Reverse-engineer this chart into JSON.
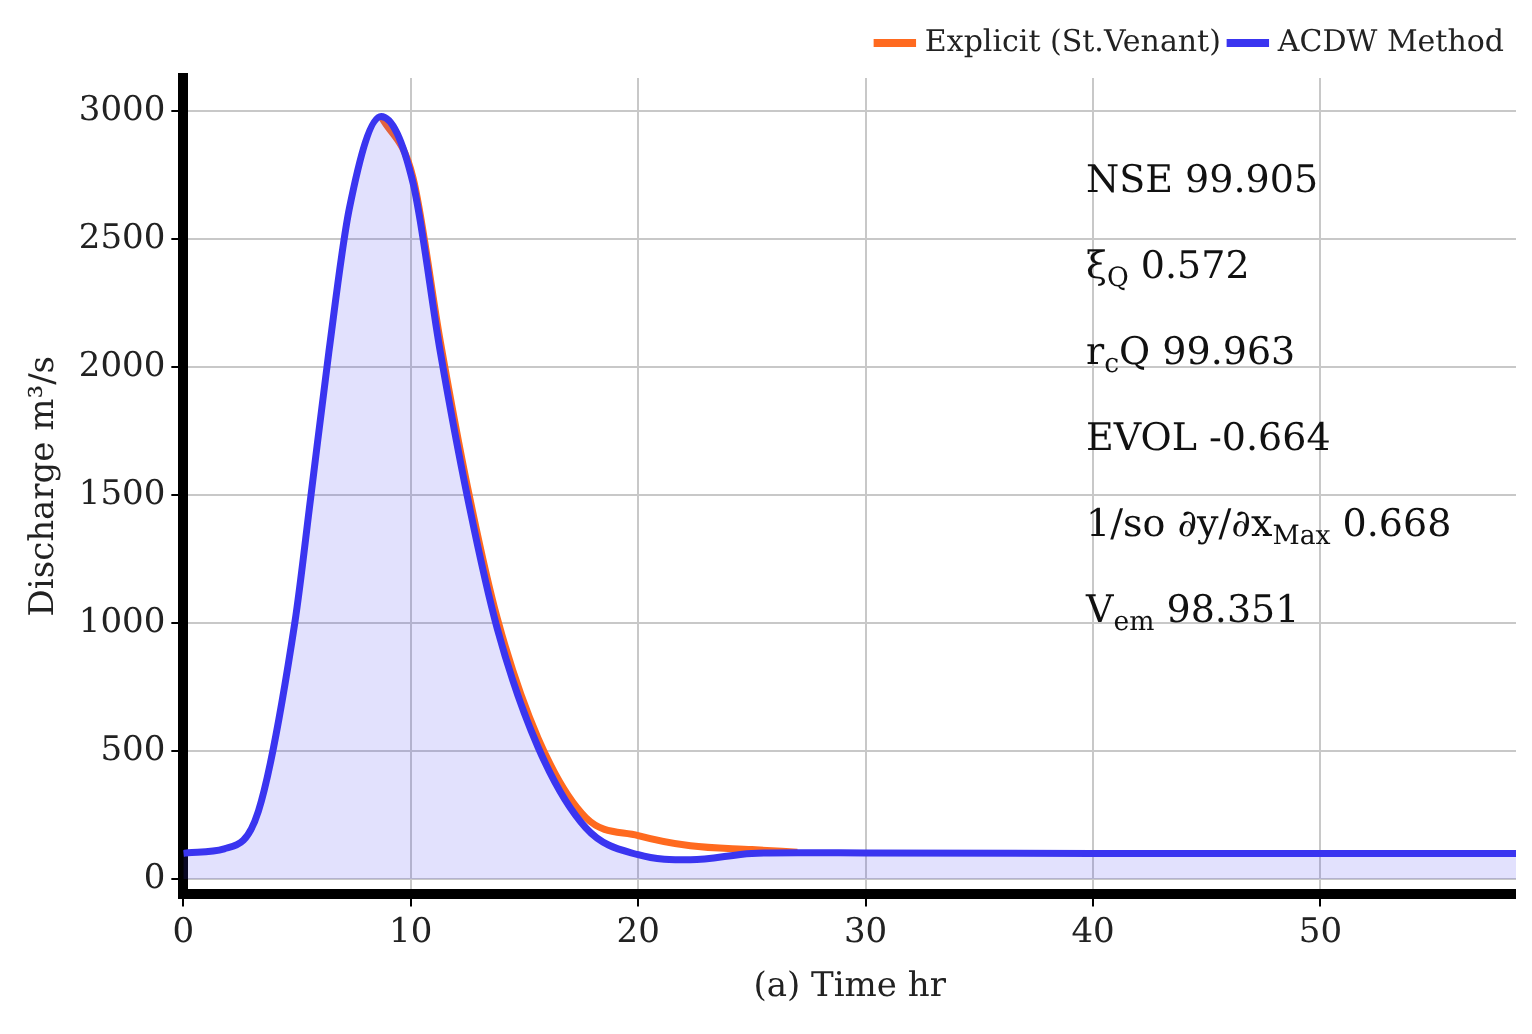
{
  "chart_data": {
    "type": "line",
    "xlabel": "(a) Time hr",
    "ylabel": "Discharge m³/s",
    "xlim": [
      0,
      58.6
    ],
    "xticks": [
      0,
      10,
      20,
      30,
      40,
      50
    ],
    "ylim": [
      -60,
      3130
    ],
    "yticks": [
      0,
      500,
      1000,
      1500,
      2000,
      2500,
      3000
    ],
    "grid": true,
    "legend": "top right",
    "line_style": "solid",
    "marker": "none",
    "annotations": [
      "NSE 99.905",
      "ξ$_{Q}$ 0.572",
      "r$_{c}$Q 99.963",
      "EVOL -0.664",
      "1/so ∂y/∂x$_{Max}$ 0.668",
      "V$_{em}$ 98.351"
    ],
    "series": [
      {
        "name": "Explicit (St.Venant)",
        "color": "#ff6a1f",
        "x": [
          8.7,
          10.1,
          11.3,
          12.5,
          13.8,
          15.6,
          17.7,
          20,
          22.3,
          25,
          27
        ],
        "values": [
          2980,
          2740,
          2100,
          1530,
          1020,
          550,
          240,
          170,
          130,
          115,
          105
        ]
      },
      {
        "name": "ACDW Method",
        "color": "#3a35f0",
        "type": "area",
        "x": [
          0,
          0.2,
          1.8,
          3.3,
          4.9,
          5.6,
          6.4,
          7.3,
          8.7,
          10.1,
          11.3,
          12.5,
          13.8,
          15.6,
          17.7,
          20,
          22.3,
          25,
          27,
          30,
          40,
          50,
          58.6
        ],
        "values": [
          100,
          103,
          118,
          265,
          1000,
          1490,
          2060,
          2620,
          2980,
          2720,
          2060,
          1490,
          980,
          515,
          200,
          95,
          75,
          100,
          103,
          102,
          100,
          100,
          100
        ]
      }
    ]
  }
}
